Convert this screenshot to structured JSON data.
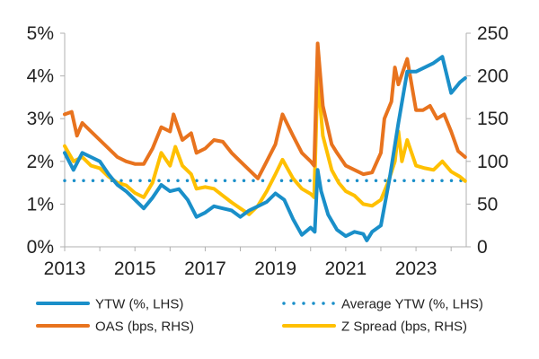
{
  "chart_data": {
    "type": "line",
    "title": "",
    "xlim": [
      2013,
      2024.43
    ],
    "x_ticks": [
      "2013",
      "2015",
      "2017",
      "2019",
      "2021",
      "2023"
    ],
    "y_left": {
      "label": "",
      "range": [
        0,
        5
      ],
      "ticks": [
        "0%",
        "1%",
        "2%",
        "3%",
        "4%",
        "5%"
      ]
    },
    "y_right": {
      "label": "",
      "range": [
        0,
        250
      ],
      "ticks": [
        "0",
        "50",
        "100",
        "150",
        "200",
        "250"
      ]
    },
    "grid": false,
    "legend_placement": "bottom",
    "series": [
      {
        "name": "YTW (%, LHS)",
        "axis": "left",
        "color": "#1a8fc9",
        "style": "solid",
        "x": [
          2013.0,
          2013.25,
          2013.5,
          2013.75,
          2014.0,
          2014.25,
          2014.5,
          2014.75,
          2015.0,
          2015.25,
          2015.5,
          2015.75,
          2016.0,
          2016.25,
          2016.5,
          2016.75,
          2017.0,
          2017.25,
          2017.5,
          2017.75,
          2018.0,
          2018.25,
          2018.5,
          2018.75,
          2019.0,
          2019.25,
          2019.5,
          2019.75,
          2020.0,
          2020.12,
          2020.2,
          2020.3,
          2020.5,
          2020.75,
          2021.0,
          2021.25,
          2021.5,
          2021.6,
          2021.75,
          2022.0,
          2022.25,
          2022.5,
          2022.75,
          2023.0,
          2023.25,
          2023.5,
          2023.75,
          2024.0,
          2024.25,
          2024.4
        ],
        "y": [
          2.2,
          1.8,
          2.2,
          2.1,
          2.0,
          1.7,
          1.45,
          1.3,
          1.1,
          0.9,
          1.15,
          1.45,
          1.3,
          1.35,
          1.1,
          0.7,
          0.8,
          0.95,
          0.9,
          0.85,
          0.7,
          0.85,
          0.95,
          1.05,
          1.25,
          1.1,
          0.65,
          0.28,
          0.45,
          0.35,
          1.8,
          1.3,
          0.75,
          0.4,
          0.25,
          0.35,
          0.3,
          0.15,
          0.35,
          0.5,
          1.6,
          2.9,
          4.1,
          4.1,
          4.2,
          4.3,
          4.45,
          3.6,
          3.85,
          3.95
        ]
      },
      {
        "name": "Average YTW (%, LHS)",
        "axis": "left",
        "color": "#1a8fc9",
        "style": "dotted",
        "x": [
          2013.0,
          2024.4
        ],
        "y": [
          1.55,
          1.55
        ]
      },
      {
        "name": "OAS (bps, RHS)",
        "axis": "right",
        "color": "#e8731e",
        "style": "solid",
        "x": [
          2013.0,
          2013.2,
          2013.35,
          2013.5,
          2013.75,
          2014.0,
          2014.25,
          2014.5,
          2014.75,
          2015.0,
          2015.25,
          2015.5,
          2015.75,
          2016.0,
          2016.1,
          2016.35,
          2016.6,
          2016.75,
          2017.0,
          2017.25,
          2017.5,
          2017.75,
          2018.0,
          2018.25,
          2018.5,
          2018.75,
          2019.0,
          2019.2,
          2019.5,
          2019.75,
          2020.0,
          2020.1,
          2020.2,
          2020.35,
          2020.6,
          2020.75,
          2021.0,
          2021.25,
          2021.5,
          2021.75,
          2022.0,
          2022.1,
          2022.3,
          2022.4,
          2022.5,
          2022.75,
          2023.0,
          2023.2,
          2023.4,
          2023.6,
          2023.8,
          2024.0,
          2024.2,
          2024.4
        ],
        "y": [
          155,
          158,
          130,
          145,
          135,
          125,
          115,
          105,
          100,
          97,
          97,
          115,
          140,
          135,
          155,
          125,
          133,
          110,
          115,
          125,
          123,
          110,
          100,
          90,
          80,
          100,
          120,
          155,
          130,
          110,
          100,
          95,
          238,
          165,
          120,
          110,
          95,
          90,
          85,
          87,
          110,
          150,
          170,
          210,
          190,
          220,
          160,
          160,
          165,
          150,
          155,
          135,
          112,
          105
        ]
      },
      {
        "name": "Z Spread (bps, RHS)",
        "axis": "right",
        "color": "#ffc000",
        "style": "solid",
        "x": [
          2013.0,
          2013.25,
          2013.5,
          2013.75,
          2014.0,
          2014.25,
          2014.5,
          2014.75,
          2015.0,
          2015.25,
          2015.5,
          2015.75,
          2016.0,
          2016.15,
          2016.35,
          2016.6,
          2016.75,
          2017.0,
          2017.25,
          2017.5,
          2017.75,
          2018.0,
          2018.25,
          2018.5,
          2018.75,
          2019.0,
          2019.2,
          2019.5,
          2019.75,
          2020.0,
          2020.1,
          2020.2,
          2020.35,
          2020.6,
          2020.8,
          2021.0,
          2021.25,
          2021.5,
          2021.75,
          2022.0,
          2022.2,
          2022.4,
          2022.5,
          2022.6,
          2022.75,
          2023.0,
          2023.25,
          2023.5,
          2023.75,
          2024.0,
          2024.25,
          2024.4
        ],
        "y": [
          118,
          100,
          105,
          95,
          92,
          82,
          75,
          72,
          63,
          58,
          75,
          110,
          95,
          117,
          95,
          85,
          68,
          70,
          68,
          60,
          52,
          45,
          38,
          48,
          65,
          85,
          102,
          80,
          68,
          62,
          58,
          200,
          130,
          90,
          75,
          65,
          60,
          50,
          48,
          55,
          75,
          100,
          135,
          100,
          125,
          95,
          92,
          90,
          100,
          88,
          82,
          77
        ]
      }
    ]
  }
}
